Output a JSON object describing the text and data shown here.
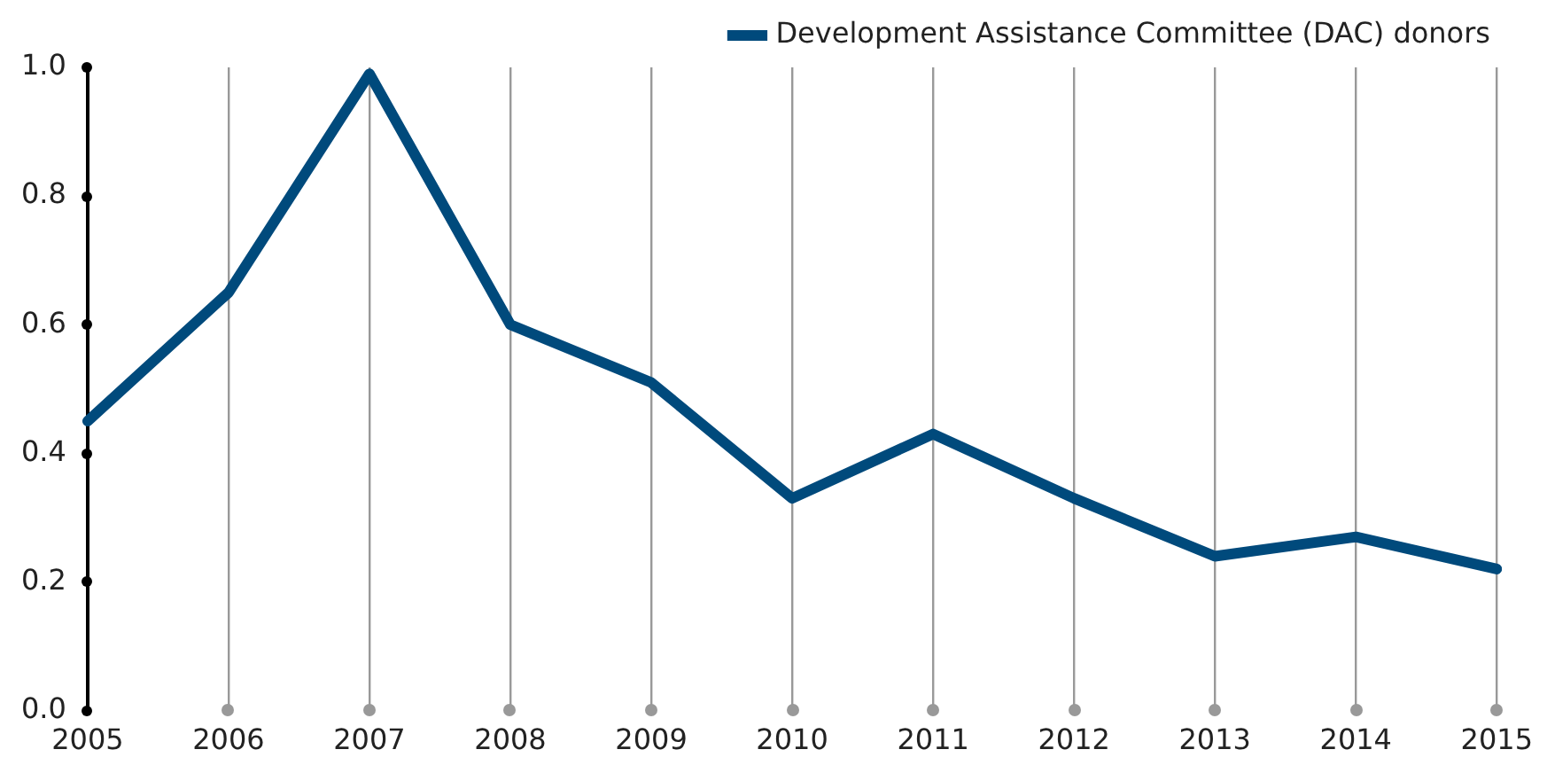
{
  "chart_data": {
    "type": "line",
    "categories": [
      "2005",
      "2006",
      "2007",
      "2008",
      "2009",
      "2010",
      "2011",
      "2012",
      "2013",
      "2014",
      "2015"
    ],
    "series": [
      {
        "name": "Development Assistance Committee (DAC) donors",
        "color": "#004a7c",
        "values": [
          0.45,
          0.65,
          0.99,
          0.6,
          0.51,
          0.33,
          0.43,
          0.33,
          0.24,
          0.27,
          0.22
        ]
      }
    ],
    "ylim": [
      0,
      1
    ],
    "yticks": [
      {
        "value": 0,
        "label": "0.0"
      },
      {
        "value": 0.2,
        "label": "0.2"
      },
      {
        "value": 0.4,
        "label": "0.4"
      },
      {
        "value": 0.6,
        "label": "0.6"
      },
      {
        "value": 0.8,
        "label": "0.8"
      },
      {
        "value": 1,
        "label": "1.0"
      }
    ],
    "grid": "x",
    "legend": "top right",
    "marker": "none",
    "line_style": "solid"
  }
}
